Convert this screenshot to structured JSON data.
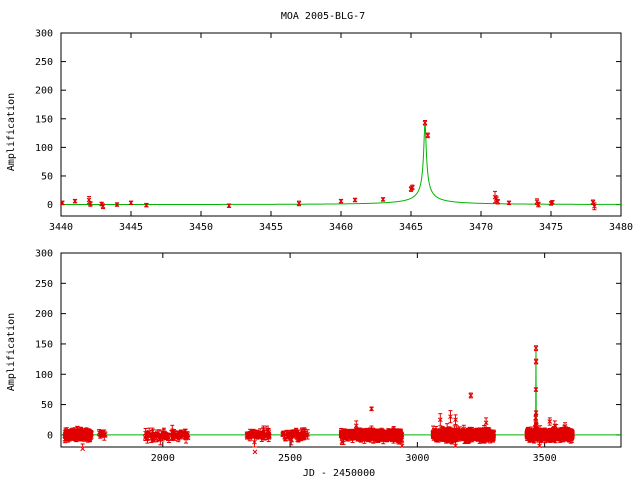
{
  "chart_data": [
    {
      "type": "line",
      "title": "MOA 2005-BLG-7",
      "xlabel": "",
      "ylabel": "Amplification",
      "xlim": [
        3440,
        3480
      ],
      "ylim": [
        -20,
        300
      ],
      "xticks": [
        "3440",
        "3445",
        "3450",
        "3455",
        "3460",
        "3465",
        "3470",
        "3475",
        "3480"
      ],
      "yticks": [
        "0",
        "50",
        "100",
        "150",
        "200",
        "250",
        "300"
      ],
      "grid": false,
      "model": {
        "t0": 3466.0,
        "u0": 0.007,
        "tE": 12.0,
        "peak_shift": 0.12
      },
      "data_points": [
        {
          "x": 3440.1,
          "y": 3,
          "e": 3
        },
        {
          "x": 3441.0,
          "y": 6,
          "e": 3
        },
        {
          "x": 3442.0,
          "y": 8,
          "e": 6
        },
        {
          "x": 3442.1,
          "y": 1,
          "e": 4
        },
        {
          "x": 3442.9,
          "y": 1,
          "e": 3
        },
        {
          "x": 3443.0,
          "y": -3,
          "e": 4
        },
        {
          "x": 3444.0,
          "y": 0,
          "e": 3
        },
        {
          "x": 3445.0,
          "y": 3,
          "e": 3
        },
        {
          "x": 3446.1,
          "y": -1,
          "e": 3
        },
        {
          "x": 3452.0,
          "y": -2,
          "e": 3
        },
        {
          "x": 3457.0,
          "y": 2,
          "e": 4
        },
        {
          "x": 3460.0,
          "y": 6,
          "e": 3
        },
        {
          "x": 3461.0,
          "y": 8,
          "e": 3
        },
        {
          "x": 3463.0,
          "y": 9,
          "e": 3
        },
        {
          "x": 3465.0,
          "y": 27,
          "e": 4
        },
        {
          "x": 3465.1,
          "y": 30,
          "e": 4
        },
        {
          "x": 3466.0,
          "y": 143,
          "e": 4
        },
        {
          "x": 3466.2,
          "y": 121,
          "e": 4
        },
        {
          "x": 3471.0,
          "y": 13,
          "e": 10
        },
        {
          "x": 3471.1,
          "y": 10,
          "e": 5
        },
        {
          "x": 3471.2,
          "y": 5,
          "e": 4
        },
        {
          "x": 3472.0,
          "y": 3,
          "e": 3
        },
        {
          "x": 3474.0,
          "y": 5,
          "e": 5
        },
        {
          "x": 3474.1,
          "y": 0,
          "e": 4
        },
        {
          "x": 3475.0,
          "y": 2,
          "e": 3
        },
        {
          "x": 3475.1,
          "y": 4,
          "e": 3
        },
        {
          "x": 3478.0,
          "y": 4,
          "e": 4
        },
        {
          "x": 3478.1,
          "y": -3,
          "e": 6
        }
      ]
    },
    {
      "type": "line",
      "title": "",
      "xlabel": "JD - 2450000",
      "ylabel": "Amplification",
      "xlim": [
        1600,
        3800
      ],
      "ylim": [
        -20,
        300
      ],
      "xticks": [
        "2000",
        "2500",
        "3000",
        "3500"
      ],
      "yticks": [
        "0",
        "50",
        "100",
        "150",
        "200",
        "250",
        "300"
      ],
      "grid": false,
      "seasons": [
        {
          "start": 1615,
          "end": 1720,
          "density": 2.0
        },
        {
          "start": 1750,
          "end": 1780,
          "density": 0.3
        },
        {
          "start": 1930,
          "end": 2100,
          "density": 0.4
        },
        {
          "start": 2330,
          "end": 2420,
          "density": 0.6
        },
        {
          "start": 2470,
          "end": 2570,
          "density": 0.6
        },
        {
          "start": 2700,
          "end": 2940,
          "density": 2.0
        },
        {
          "start": 3060,
          "end": 3300,
          "density": 3.0
        },
        {
          "start": 3430,
          "end": 3610,
          "density": 3.5
        }
      ],
      "highlight_points": [
        {
          "x": 1685,
          "y": -23,
          "e": 8
        },
        {
          "x": 2360,
          "y": -12,
          "e": 8
        },
        {
          "x": 2362,
          "y": -28,
          "e": 8
        },
        {
          "x": 2820,
          "y": 43,
          "e": 3
        },
        {
          "x": 2760,
          "y": 15,
          "e": 8
        },
        {
          "x": 2940,
          "y": -18,
          "e": 6
        },
        {
          "x": 3090,
          "y": 25,
          "e": 10
        },
        {
          "x": 3130,
          "y": 30,
          "e": 10
        },
        {
          "x": 3150,
          "y": 25,
          "e": 8
        },
        {
          "x": 3210,
          "y": 65,
          "e": 4
        },
        {
          "x": 3270,
          "y": 20,
          "e": 8
        },
        {
          "x": 3150,
          "y": -18,
          "e": 8
        },
        {
          "x": 3466,
          "y": 143,
          "e": 4
        },
        {
          "x": 3466.5,
          "y": 121,
          "e": 4
        },
        {
          "x": 3465,
          "y": 28,
          "e": 4
        },
        {
          "x": 3480,
          "y": -18,
          "e": 6
        },
        {
          "x": 3520,
          "y": 22,
          "e": 6
        },
        {
          "x": 3540,
          "y": 15,
          "e": 8
        },
        {
          "x": 3580,
          "y": 14,
          "e": 6
        }
      ]
    }
  ]
}
